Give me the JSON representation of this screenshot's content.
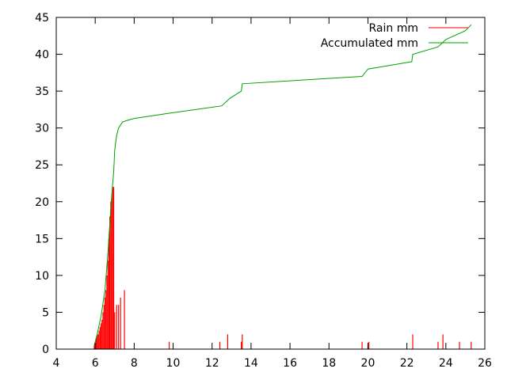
{
  "chart_data": {
    "type": "line",
    "title": "",
    "xlabel": "",
    "ylabel": "",
    "xlim": [
      4,
      26
    ],
    "ylim": [
      0,
      45
    ],
    "xticks": [
      4,
      6,
      8,
      10,
      12,
      14,
      16,
      18,
      20,
      22,
      24,
      26
    ],
    "yticks": [
      0,
      5,
      10,
      15,
      20,
      25,
      30,
      35,
      40,
      45
    ],
    "grid": false,
    "legend_position": "top-right",
    "series": [
      {
        "name": "Rain mm",
        "kind": "impulse",
        "color": "#ff0000",
        "points": [
          [
            5.95,
            0.5
          ],
          [
            6.0,
            1
          ],
          [
            6.05,
            1.5
          ],
          [
            6.1,
            2
          ],
          [
            6.15,
            2
          ],
          [
            6.2,
            2.5
          ],
          [
            6.25,
            3
          ],
          [
            6.3,
            3.5
          ],
          [
            6.35,
            4
          ],
          [
            6.4,
            5
          ],
          [
            6.45,
            6
          ],
          [
            6.5,
            7
          ],
          [
            6.55,
            8
          ],
          [
            6.6,
            10
          ],
          [
            6.65,
            12
          ],
          [
            6.7,
            15
          ],
          [
            6.75,
            18
          ],
          [
            6.8,
            20
          ],
          [
            6.85,
            21
          ],
          [
            6.9,
            22
          ],
          [
            6.95,
            22
          ],
          [
            7.0,
            5
          ],
          [
            7.1,
            6
          ],
          [
            7.2,
            6
          ],
          [
            7.3,
            7
          ],
          [
            7.5,
            8
          ],
          [
            9.8,
            1
          ],
          [
            12.4,
            1
          ],
          [
            12.8,
            2
          ],
          [
            13.5,
            1
          ],
          [
            13.55,
            2
          ],
          [
            19.7,
            1
          ],
          [
            20.0,
            0.5
          ],
          [
            20.05,
            1
          ],
          [
            22.3,
            2
          ],
          [
            23.6,
            1
          ],
          [
            23.85,
            2
          ],
          [
            24.7,
            1
          ],
          [
            25.3,
            1
          ]
        ]
      },
      {
        "name": "Accumulated mm",
        "kind": "line",
        "color": "#00a000",
        "points": [
          [
            5.95,
            0.5
          ],
          [
            6.1,
            2
          ],
          [
            6.3,
            4.5
          ],
          [
            6.5,
            8
          ],
          [
            6.65,
            13
          ],
          [
            6.75,
            17
          ],
          [
            6.85,
            21
          ],
          [
            6.95,
            24
          ],
          [
            7.0,
            27
          ],
          [
            7.1,
            29
          ],
          [
            7.2,
            30
          ],
          [
            7.4,
            30.8
          ],
          [
            7.6,
            31
          ],
          [
            8.0,
            31.3
          ],
          [
            9.8,
            32
          ],
          [
            12.5,
            33
          ],
          [
            12.9,
            34
          ],
          [
            13.5,
            35
          ],
          [
            13.55,
            36
          ],
          [
            19.7,
            37
          ],
          [
            20.0,
            38
          ],
          [
            22.25,
            39
          ],
          [
            22.3,
            40
          ],
          [
            23.6,
            41
          ],
          [
            24.0,
            42
          ],
          [
            25.0,
            43.2
          ],
          [
            25.3,
            44
          ]
        ]
      }
    ]
  }
}
